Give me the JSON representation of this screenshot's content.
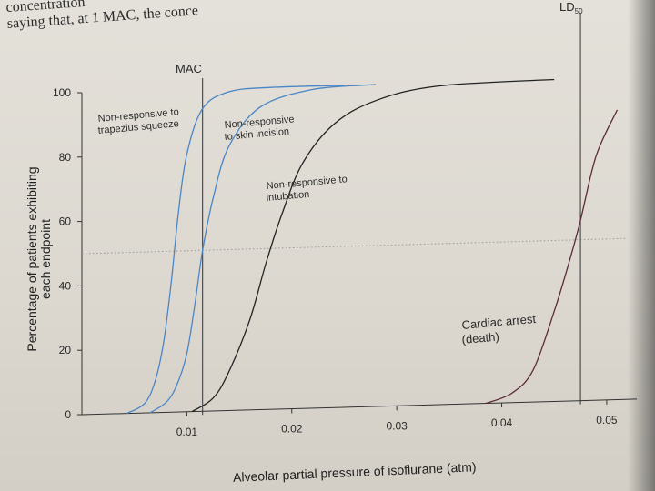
{
  "page": {
    "top_text_line1": "concentration",
    "top_text_line2": "saying that, at 1 MAC, the conce"
  },
  "chart_data": {
    "type": "line",
    "xlabel": "Alveolar partial pressure of isoflurane (atm)",
    "ylabel": "Percentage of patients exhibiting each endpoint",
    "xlim": [
      0,
      0.052
    ],
    "ylim": [
      0,
      100
    ],
    "x_ticks": [
      0.01,
      0.02,
      0.03,
      0.04,
      0.05
    ],
    "x_tick_labels": [
      "0.01",
      "0.02",
      "0.03",
      "0.04",
      "0.05"
    ],
    "y_ticks": [
      0,
      20,
      40,
      60,
      80,
      100
    ],
    "y_tick_labels": [
      "0",
      "20",
      "40",
      "60",
      "80",
      "100"
    ],
    "reference_lines": [
      {
        "label": "MAC",
        "x": 0.0115
      },
      {
        "label": "LD50",
        "x": 0.0475
      }
    ],
    "fifty_percent_line": 50,
    "series": [
      {
        "name": "Non-responsive to trapezius squeeze",
        "color": "#4a86c5",
        "x": [
          0.0043,
          0.006,
          0.007,
          0.0078,
          0.0085,
          0.0092,
          0.01,
          0.0115,
          0.014,
          0.018,
          0.025
        ],
        "y": [
          0,
          3,
          10,
          22,
          40,
          62,
          80,
          94,
          99,
          100,
          100
        ]
      },
      {
        "name": "Non-responsive to skin incision",
        "color": "#4a86c5",
        "x": [
          0.0065,
          0.008,
          0.009,
          0.01,
          0.0108,
          0.0115,
          0.0125,
          0.014,
          0.017,
          0.022,
          0.028
        ],
        "y": [
          0,
          3,
          8,
          18,
          34,
          50,
          66,
          82,
          94,
          99,
          100
        ]
      },
      {
        "name": "Non-responsive to intubation",
        "color": "#222222",
        "x": [
          0.0105,
          0.0125,
          0.014,
          0.016,
          0.0175,
          0.019,
          0.021,
          0.024,
          0.028,
          0.034,
          0.045
        ],
        "y": [
          0,
          4,
          12,
          28,
          45,
          60,
          76,
          88,
          95,
          99,
          100
        ]
      },
      {
        "name": "Cardiac arrest (death)",
        "color": "#5a2a38",
        "x": [
          0.0385,
          0.041,
          0.043,
          0.045,
          0.0465,
          0.0475,
          0.049,
          0.051
        ],
        "y": [
          0,
          3,
          10,
          28,
          44,
          56,
          76,
          90
        ]
      }
    ],
    "annotations": [
      {
        "text": "Non-responsive to",
        "text2": "trapezius squeeze"
      },
      {
        "text": "Non-responsive",
        "text2": "to skin incision"
      },
      {
        "text": "Non-responsive to",
        "text2": "intubation"
      },
      {
        "text": "Cardiac arrest",
        "text2": "(death)"
      }
    ],
    "mac_label": "MAC",
    "ld_label": "LD",
    "ld_sub": "50"
  }
}
